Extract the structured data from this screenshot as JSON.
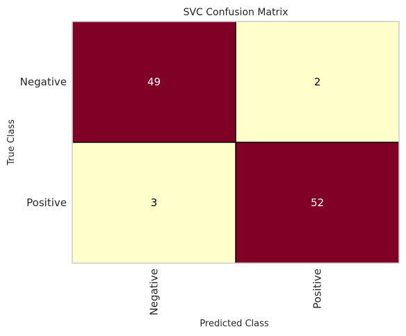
{
  "chart_data": {
    "type": "heatmap",
    "title": "SVC Confusion Matrix",
    "xlabel": "Predicted Class",
    "ylabel": "True Class",
    "x_categories": [
      "Negative",
      "Positive"
    ],
    "y_categories": [
      "Negative",
      "Positive"
    ],
    "values": [
      [
        49,
        2
      ],
      [
        3,
        52
      ]
    ],
    "colors": {
      "high": "#800026",
      "low": "#ffffcc",
      "high_text": "#ffffff",
      "low_text": "#000000",
      "frame": "#cccccc",
      "highlight_border": "#000000"
    },
    "grid": false,
    "legend": "none"
  }
}
